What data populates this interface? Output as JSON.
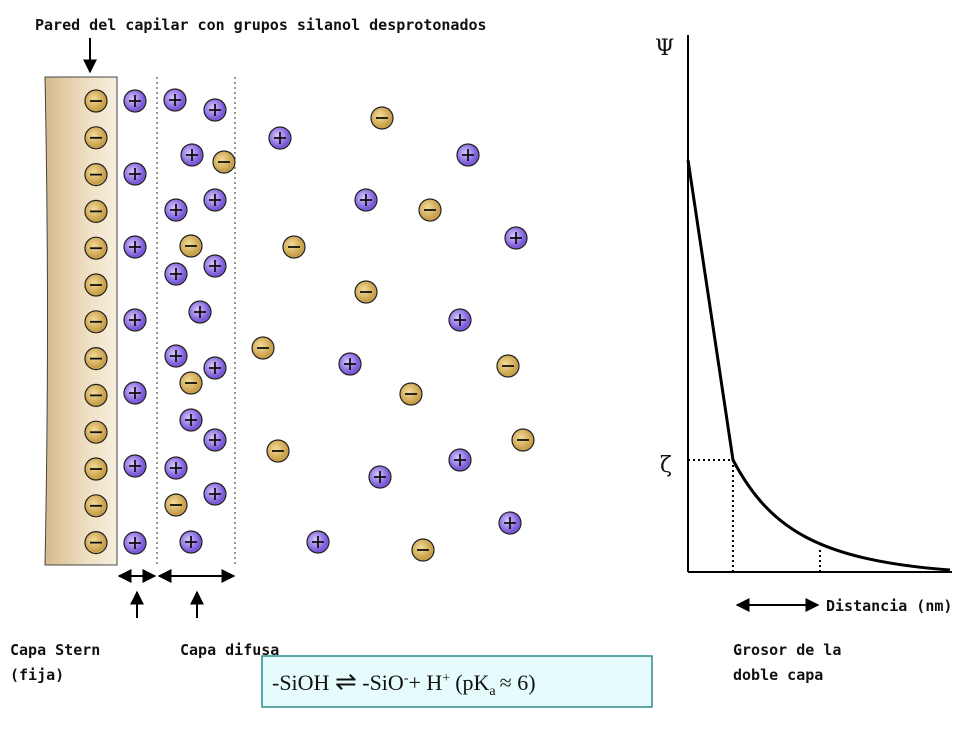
{
  "header": {
    "title": "Pared del capilar con grupos silanol desprotonados"
  },
  "labels": {
    "stern_line1": "Capa Stern",
    "stern_line2": "(fija)",
    "diffuse": "Capa difusa",
    "thickness_line1": "Grosor de la",
    "thickness_line2": "doble capa"
  },
  "graph": {
    "y_axis": "Ψ",
    "zeta": "ζ",
    "x_axis": "Distancia (nm)"
  },
  "equation": {
    "left": "-SiOH",
    "arrow": "⇌",
    "right": "-SiO",
    "right_sup": "-",
    "plus": "+ H",
    "h_sup": "+",
    "pk_open": "(pK",
    "pk_sub": "a",
    "pk_close": "≈ 6)"
  }
}
